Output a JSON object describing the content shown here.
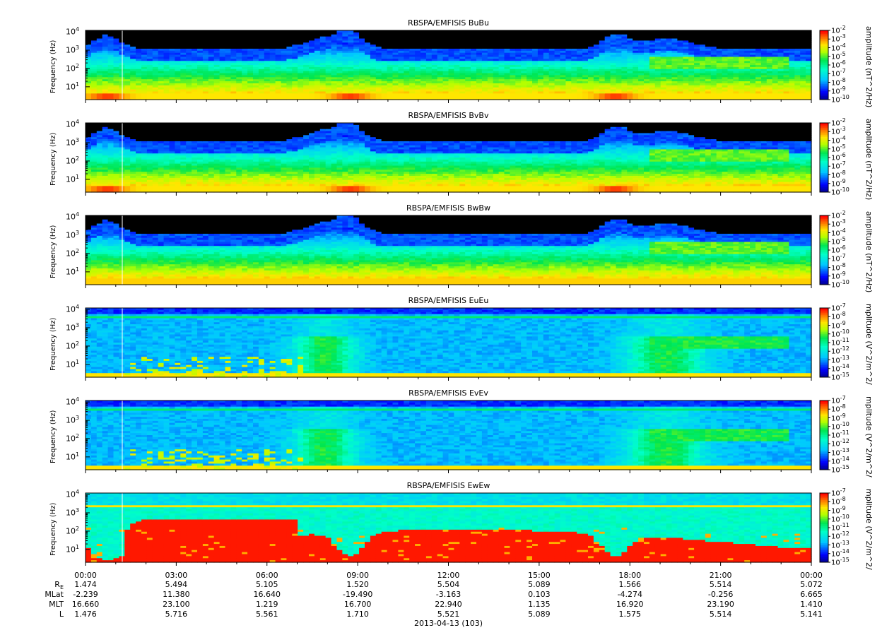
{
  "chart_data": [
    {
      "type": "heatmap",
      "title": "RBSPA/EMFISIS  BuBu",
      "ylabel": "Frequency (Hz)",
      "yscale": "log",
      "ylim": [
        2,
        12000
      ],
      "colorbar_label": "amplitude (nT^2/Hz)",
      "colorbar_ticks": [
        "10-2",
        "10-3",
        "10-4",
        "10-5",
        "10-6",
        "10-7",
        "10-8",
        "10-9",
        "10-10"
      ],
      "kind": "B"
    },
    {
      "type": "heatmap",
      "title": "RBSPA/EMFISIS  BvBv",
      "ylabel": "Frequency (Hz)",
      "yscale": "log",
      "ylim": [
        2,
        12000
      ],
      "colorbar_label": "amplitude (nT^2/Hz)",
      "colorbar_ticks": [
        "10-2",
        "10-3",
        "10-4",
        "10-5",
        "10-6",
        "10-7",
        "10-8",
        "10-9",
        "10-10"
      ],
      "kind": "B"
    },
    {
      "type": "heatmap",
      "title": "RBSPA/EMFISIS  BwBw",
      "ylabel": "Frequency (Hz)",
      "yscale": "log",
      "ylim": [
        2,
        12000
      ],
      "colorbar_label": "amplitude (nT^2/Hz)",
      "colorbar_ticks": [
        "10-2",
        "10-3",
        "10-4",
        "10-5",
        "10-6",
        "10-7",
        "10-8",
        "10-9",
        "10-10"
      ],
      "kind": "B3"
    },
    {
      "type": "heatmap",
      "title": "RBSPA/EMFISIS  EuEu",
      "ylabel": "Frequency (Hz)",
      "yscale": "log",
      "ylim": [
        2,
        12000
      ],
      "colorbar_label": "mplitude (V^2/m^2/",
      "colorbar_ticks": [
        "10-7",
        "10-8",
        "10-9",
        "10-10",
        "10-11",
        "10-12",
        "10-13",
        "10-14",
        "10-15"
      ],
      "kind": "E"
    },
    {
      "type": "heatmap",
      "title": "RBSPA/EMFISIS  EvEv",
      "ylabel": "Frequency (Hz)",
      "yscale": "log",
      "ylim": [
        2,
        12000
      ],
      "colorbar_label": "mplitude (V^2/m^2/",
      "colorbar_ticks": [
        "10-7",
        "10-8",
        "10-9",
        "10-10",
        "10-11",
        "10-12",
        "10-13",
        "10-14",
        "10-15"
      ],
      "kind": "E"
    },
    {
      "type": "heatmap",
      "title": "RBSPA/EMFISIS  EwEw",
      "ylabel": "Frequency (Hz)",
      "yscale": "log",
      "ylim": [
        2,
        12000
      ],
      "colorbar_label": "mplitude (V^2/m^2/",
      "colorbar_ticks": [
        "10-7",
        "10-8",
        "10-9",
        "10-10",
        "10-11",
        "10-12",
        "10-13",
        "10-14",
        "10-15"
      ],
      "kind": "Ew"
    }
  ],
  "yticks": [
    {
      "label": "10",
      "exp": "4",
      "value": 10000
    },
    {
      "label": "10",
      "exp": "3",
      "value": 1000
    },
    {
      "label": "10",
      "exp": "2",
      "value": 100
    },
    {
      "label": "10",
      "exp": "1",
      "value": 10
    }
  ],
  "x_axis": {
    "times": [
      "00:00",
      "03:00",
      "06:00",
      "09:00",
      "12:00",
      "15:00",
      "18:00",
      "21:00",
      "00:00"
    ],
    "date_label": "2013-04-13 (103)"
  },
  "ephemeris": [
    {
      "label": "RE",
      "values": [
        "1.474",
        "5.494",
        "5.105",
        "1.520",
        "5.504",
        "5.089",
        "1.566",
        "5.514",
        "5.072"
      ]
    },
    {
      "label": "MLat",
      "values": [
        "-2.239",
        "11.380",
        "16.640",
        "-19.490",
        "-3.163",
        "0.103",
        "-4.274",
        "-0.256",
        "6.665"
      ]
    },
    {
      "label": "MLT",
      "values": [
        "16.660",
        "23.100",
        "1.219",
        "16.700",
        "22.940",
        "1.135",
        "16.920",
        "23.190",
        "1.410"
      ]
    },
    {
      "label": "L",
      "values": [
        "1.476",
        "5.716",
        "5.561",
        "1.710",
        "5.521",
        "5.089",
        "1.575",
        "5.514",
        "5.141"
      ]
    }
  ]
}
